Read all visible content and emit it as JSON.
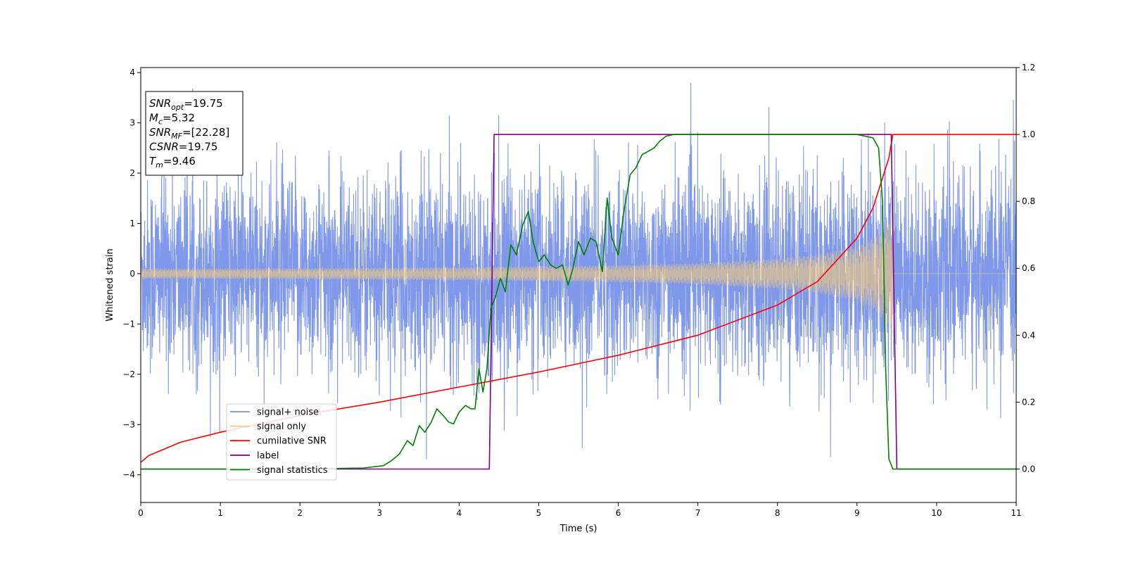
{
  "chart_data": {
    "type": "line",
    "xlabel": "Time (s)",
    "ylabel": "Whitened strain",
    "xlim": [
      0,
      11
    ],
    "ylim_left": [
      -4.55,
      4.1
    ],
    "ylim_right": [
      -0.1,
      1.2
    ],
    "x_ticks": [
      0,
      1,
      2,
      3,
      4,
      5,
      6,
      7,
      8,
      9,
      10,
      11
    ],
    "y_left_ticks": [
      -4,
      -3,
      -2,
      -1,
      0,
      1,
      2,
      3,
      4
    ],
    "y_right_ticks": [
      0.0,
      0.2,
      0.4,
      0.6,
      0.8,
      1.0,
      1.2
    ],
    "y_left_tick_labels": [
      "−4",
      "−3",
      "−2",
      "−1",
      "0",
      "1",
      "2",
      "3",
      "4"
    ],
    "y_right_tick_labels": [
      "0.0",
      "0.2",
      "0.4",
      "0.6",
      "0.8",
      "1.0",
      "1.2"
    ],
    "grid": false,
    "legend_position": "lower-left",
    "annotation_box": {
      "lines": [
        {
          "base": "SNR",
          "sub": "opt",
          "value": "=19.75"
        },
        {
          "base": "M",
          "sub": "c",
          "value": "=5.32"
        },
        {
          "base": "SNR",
          "sub": "MF",
          "value": "=[22.28]"
        },
        {
          "base": "CSNR",
          "sub": "",
          "value": "=19.75"
        },
        {
          "base": "T",
          "sub": "m",
          "value": "=9.46"
        }
      ]
    },
    "series": [
      {
        "name": "signal+ noise",
        "axis": "left",
        "color": "#7892e8",
        "kind": "noise band",
        "approx_envelope": {
          "typical_amplitude": 1.6,
          "extreme_min": -4.15,
          "extreme_max": 3.72
        }
      },
      {
        "name": "signal only",
        "axis": "left",
        "color": "#f5c97a",
        "kind": "chirp",
        "start_s": 0.0,
        "merger_s": 9.46,
        "amplitude_envelope": {
          "x": [
            0,
            2,
            4,
            5,
            6,
            7,
            8,
            8.5,
            9,
            9.2,
            9.35,
            9.46
          ],
          "y": [
            0.1,
            0.11,
            0.13,
            0.15,
            0.17,
            0.21,
            0.3,
            0.38,
            0.55,
            0.7,
            0.95,
            1.35
          ]
        }
      },
      {
        "name": "cumilative SNR",
        "axis": "right",
        "color": "#ff0000",
        "x": [
          0,
          0.1,
          0.5,
          1,
          2,
          3,
          4,
          5,
          6,
          7,
          8,
          8.5,
          9,
          9.2,
          9.4,
          9.45,
          11
        ],
        "y": [
          0.02,
          0.04,
          0.08,
          0.11,
          0.16,
          0.2,
          0.245,
          0.29,
          0.34,
          0.4,
          0.49,
          0.56,
          0.69,
          0.78,
          0.93,
          1.0,
          1.0
        ]
      },
      {
        "name": "label",
        "axis": "right",
        "color": "#800080",
        "x": [
          0,
          4.38,
          4.44,
          9.43,
          9.5,
          11
        ],
        "y": [
          0.0,
          0.0,
          1.0,
          1.0,
          0.0,
          0.0
        ]
      },
      {
        "name": "signal statistics",
        "axis": "right",
        "color": "#008000",
        "x": [
          0,
          1,
          2,
          2.8,
          3.05,
          3.15,
          3.25,
          3.35,
          3.42,
          3.5,
          3.57,
          3.65,
          3.72,
          3.8,
          3.87,
          3.93,
          4.0,
          4.08,
          4.15,
          4.2,
          4.25,
          4.3,
          4.35,
          4.4,
          4.45,
          4.52,
          4.58,
          4.65,
          4.72,
          4.8,
          4.87,
          4.93,
          5.0,
          5.07,
          5.15,
          5.22,
          5.3,
          5.37,
          5.43,
          5.5,
          5.57,
          5.65,
          5.72,
          5.8,
          5.86,
          5.92,
          6.0,
          6.07,
          6.15,
          6.22,
          6.3,
          6.38,
          6.45,
          6.52,
          6.6,
          6.7,
          6.8,
          7.0,
          8.0,
          9.0,
          9.2,
          9.27,
          9.32,
          9.36,
          9.4,
          9.45,
          9.5,
          11
        ],
        "y": [
          0.0,
          0.0,
          0.0,
          0.003,
          0.01,
          0.025,
          0.045,
          0.085,
          0.07,
          0.13,
          0.11,
          0.14,
          0.18,
          0.16,
          0.14,
          0.135,
          0.17,
          0.19,
          0.18,
          0.18,
          0.3,
          0.23,
          0.3,
          0.48,
          0.51,
          0.57,
          0.53,
          0.67,
          0.64,
          0.73,
          0.77,
          0.68,
          0.62,
          0.64,
          0.61,
          0.6,
          0.61,
          0.55,
          0.6,
          0.68,
          0.64,
          0.69,
          0.68,
          0.59,
          0.81,
          0.69,
          0.64,
          0.77,
          0.88,
          0.9,
          0.94,
          0.95,
          0.96,
          0.98,
          0.995,
          1.0,
          1.0,
          1.0,
          1.0,
          1.0,
          0.99,
          0.96,
          0.8,
          0.3,
          0.03,
          0.0,
          0.0,
          0.0
        ]
      }
    ]
  }
}
